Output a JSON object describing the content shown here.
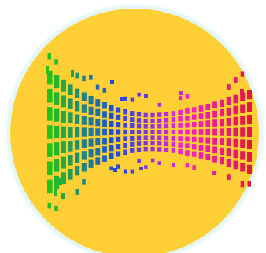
{
  "icon": {
    "name": "equalizer-tunnel-app-icon",
    "background_color": "#FFD035",
    "rim_color": "#D3F1F4",
    "gradient_colors": [
      "#23C21B",
      "#1C4BE0",
      "#F121D7",
      "#DE1A47"
    ]
  }
}
